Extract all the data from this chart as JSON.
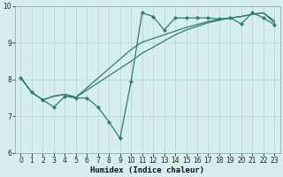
{
  "bg_color": "#d6eeee",
  "line_color": "#2d7d70",
  "grid_color": "#b8d8d8",
  "xlabel": "Humidex (Indice chaleur)",
  "xlim": [
    -0.5,
    23.5
  ],
  "ylim": [
    6,
    10
  ],
  "xticks": [
    0,
    1,
    2,
    3,
    4,
    5,
    6,
    7,
    8,
    9,
    10,
    11,
    12,
    13,
    14,
    15,
    16,
    17,
    18,
    19,
    20,
    21,
    22,
    23
  ],
  "yticks": [
    6,
    7,
    8,
    9,
    10
  ],
  "line1_x": [
    0,
    1,
    2,
    3,
    4,
    5,
    6,
    7,
    8,
    9,
    10,
    11,
    12,
    13,
    14,
    15,
    16,
    17,
    18,
    19,
    20,
    21,
    22,
    23
  ],
  "line1_y": [
    8.05,
    7.65,
    7.45,
    7.25,
    7.55,
    7.5,
    7.5,
    7.25,
    6.85,
    6.4,
    7.95,
    9.82,
    9.72,
    9.35,
    9.68,
    9.68,
    9.68,
    9.68,
    9.65,
    9.68,
    9.52,
    9.82,
    9.68,
    9.5
  ],
  "line2_x": [
    0,
    1,
    2,
    3,
    4,
    5,
    10,
    11,
    12,
    13,
    14,
    15,
    16,
    17,
    18,
    19,
    20,
    21,
    22,
    23
  ],
  "line2_y": [
    8.05,
    7.65,
    7.45,
    7.55,
    7.6,
    7.52,
    8.5,
    8.72,
    8.88,
    9.05,
    9.22,
    9.35,
    9.45,
    9.55,
    9.62,
    9.68,
    9.72,
    9.78,
    9.82,
    9.6
  ],
  "line3_x": [
    0,
    1,
    2,
    3,
    4,
    5,
    10,
    11,
    12,
    13,
    14,
    15,
    16,
    17,
    18,
    19,
    20,
    21,
    22,
    23
  ],
  "line3_y": [
    8.05,
    7.65,
    7.45,
    7.55,
    7.6,
    7.52,
    8.82,
    9.02,
    9.12,
    9.22,
    9.32,
    9.42,
    9.5,
    9.58,
    9.64,
    9.68,
    9.72,
    9.78,
    9.82,
    9.55
  ]
}
